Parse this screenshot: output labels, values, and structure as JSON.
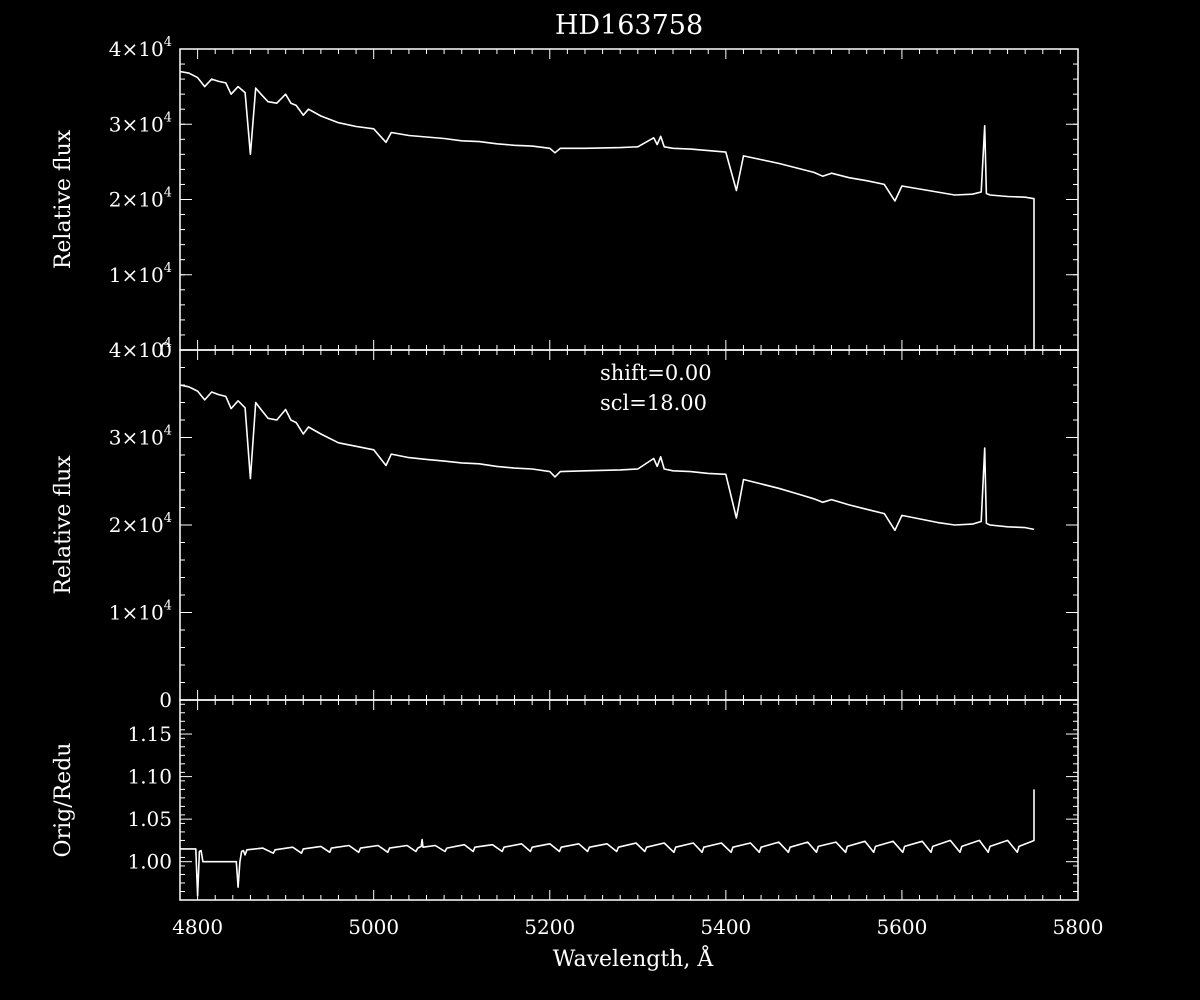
{
  "chart_data": {
    "title": "HD163758",
    "xlabel": "Wavelength, Å",
    "xlim": [
      4780,
      5800
    ],
    "xticks": [
      4800,
      5000,
      5200,
      5400,
      5600,
      5800
    ],
    "xtick_labels": [
      "4800",
      "5000",
      "5200",
      "5400",
      "5600",
      "5800"
    ],
    "panels": [
      {
        "type": "line",
        "ylabel": "Relative flux",
        "ylim": [
          0,
          40000
        ],
        "yticks": [
          0,
          10000,
          20000,
          30000,
          40000
        ],
        "ytick_labels": [
          {
            "mant": "0",
            "exp": ""
          },
          {
            "mant": "1×10",
            "exp": "4"
          },
          {
            "mant": "2×10",
            "exp": "4"
          },
          {
            "mant": "3×10",
            "exp": "4"
          },
          {
            "mant": "4×10",
            "exp": "4"
          }
        ],
        "series": {
          "x": [
            4780,
            4790,
            4800,
            4808,
            4816,
            4824,
            4832,
            4838,
            4846,
            4854,
            4860,
            4866,
            4872,
            4880,
            4890,
            4900,
            4906,
            4912,
            4920,
            4926,
            4940,
            4960,
            4980,
            5000,
            5014,
            5020,
            5040,
            5060,
            5080,
            5100,
            5120,
            5140,
            5160,
            5180,
            5200,
            5206,
            5212,
            5240,
            5280,
            5300,
            5318,
            5322,
            5326,
            5330,
            5340,
            5360,
            5380,
            5400,
            5412,
            5420,
            5440,
            5460,
            5480,
            5500,
            5510,
            5520,
            5540,
            5560,
            5580,
            5592,
            5600,
            5620,
            5640,
            5660,
            5680,
            5690,
            5694,
            5696,
            5700,
            5720,
            5740,
            5750,
            5750
          ],
          "y": [
            37000,
            36800,
            36200,
            35000,
            36000,
            35700,
            35500,
            34000,
            35000,
            34200,
            26000,
            34800,
            34000,
            33000,
            32800,
            34000,
            32800,
            32500,
            31200,
            32000,
            31100,
            30200,
            29700,
            29400,
            27600,
            28900,
            28500,
            28300,
            28100,
            27800,
            27700,
            27400,
            27200,
            27100,
            26800,
            26200,
            26800,
            26800,
            26900,
            27000,
            28200,
            27300,
            28400,
            27000,
            26800,
            26700,
            26500,
            26300,
            21200,
            25800,
            25300,
            24800,
            24200,
            23600,
            23100,
            23500,
            22900,
            22500,
            22000,
            19800,
            21800,
            21400,
            21000,
            20600,
            20700,
            21000,
            29800,
            20800,
            20600,
            20400,
            20300,
            20100,
            0
          ]
        }
      },
      {
        "type": "line",
        "ylabel": "Relative flux",
        "ylim": [
          0,
          40000
        ],
        "yticks": [
          0,
          10000,
          20000,
          30000,
          40000
        ],
        "ytick_labels": [
          {
            "mant": "0",
            "exp": ""
          },
          {
            "mant": "1×10",
            "exp": "4"
          },
          {
            "mant": "2×10",
            "exp": "4"
          },
          {
            "mant": "3×10",
            "exp": "4"
          },
          {
            "mant": "4×10",
            "exp": "4"
          }
        ],
        "annotations": [
          "shift=0.00",
          "scl=18.00"
        ],
        "series": {
          "x": [
            4780,
            4790,
            4800,
            4808,
            4816,
            4824,
            4832,
            4838,
            4846,
            4854,
            4860,
            4866,
            4872,
            4880,
            4890,
            4900,
            4906,
            4912,
            4920,
            4926,
            4940,
            4960,
            4980,
            5000,
            5014,
            5020,
            5040,
            5060,
            5080,
            5100,
            5120,
            5140,
            5160,
            5180,
            5200,
            5206,
            5212,
            5240,
            5280,
            5300,
            5318,
            5322,
            5326,
            5330,
            5340,
            5360,
            5380,
            5400,
            5412,
            5420,
            5440,
            5460,
            5480,
            5500,
            5510,
            5520,
            5540,
            5560,
            5580,
            5592,
            5600,
            5620,
            5640,
            5660,
            5680,
            5690,
            5694,
            5696,
            5700,
            5720,
            5740,
            5750
          ],
          "y": [
            36000,
            35800,
            35300,
            34300,
            35200,
            34900,
            34700,
            33300,
            34200,
            33400,
            25300,
            34000,
            33200,
            32200,
            32000,
            33200,
            32000,
            31700,
            30400,
            31200,
            30400,
            29400,
            29000,
            28600,
            26800,
            28100,
            27700,
            27500,
            27300,
            27100,
            27000,
            26700,
            26500,
            26400,
            26100,
            25500,
            26100,
            26200,
            26300,
            26400,
            27600,
            26700,
            27800,
            26400,
            26200,
            26100,
            25900,
            25800,
            20800,
            25200,
            24700,
            24200,
            23600,
            23000,
            22600,
            22900,
            22300,
            21800,
            21300,
            19400,
            21100,
            20700,
            20300,
            20000,
            20100,
            20400,
            28800,
            20200,
            20000,
            19800,
            19700,
            19500
          ]
        }
      },
      {
        "type": "line",
        "ylabel": "Orig/Redu",
        "ylim": [
          0.955,
          1.19
        ],
        "yticks": [
          1.0,
          1.05,
          1.1,
          1.15
        ],
        "ytick_labels": [
          {
            "mant": "1.00",
            "exp": ""
          },
          {
            "mant": "1.05",
            "exp": ""
          },
          {
            "mant": "1.10",
            "exp": ""
          },
          {
            "mant": "1.15",
            "exp": ""
          }
        ],
        "series": {
          "x": [
            4780,
            4798,
            4800,
            4802,
            4804,
            4806,
            4820,
            4830,
            4844,
            4846,
            4848,
            4850,
            4852,
            4854,
            4856,
            4874,
            4886,
            4888,
            4908,
            4918,
            4920,
            4940,
            4950,
            4952,
            4972,
            4983,
            4985,
            5005,
            5016,
            5018,
            5038,
            5048,
            5050,
            5054,
            5055,
            5056,
            5070,
            5081,
            5083,
            5103,
            5113,
            5115,
            5135,
            5146,
            5148,
            5168,
            5178,
            5180,
            5200,
            5211,
            5213,
            5233,
            5243,
            5245,
            5265,
            5276,
            5278,
            5298,
            5308,
            5310,
            5330,
            5341,
            5343,
            5363,
            5373,
            5375,
            5395,
            5406,
            5408,
            5428,
            5438,
            5440,
            5460,
            5471,
            5473,
            5493,
            5503,
            5505,
            5525,
            5536,
            5538,
            5558,
            5568,
            5570,
            5590,
            5601,
            5603,
            5623,
            5633,
            5635,
            5655,
            5666,
            5668,
            5688,
            5698,
            5700,
            5720,
            5731,
            5733,
            5748,
            5750,
            5750
          ],
          "y": [
            1.015,
            1.015,
            0.96,
            1.012,
            1.013,
            1.0,
            1.0,
            1.0,
            1.0,
            0.97,
            1.0,
            1.012,
            1.013,
            1.008,
            1.014,
            1.016,
            1.01,
            1.014,
            1.017,
            1.01,
            1.015,
            1.018,
            1.011,
            1.016,
            1.019,
            1.011,
            1.016,
            1.019,
            1.011,
            1.016,
            1.019,
            1.012,
            1.016,
            1.018,
            1.026,
            1.017,
            1.019,
            1.012,
            1.016,
            1.02,
            1.012,
            1.017,
            1.02,
            1.012,
            1.017,
            1.021,
            1.012,
            1.017,
            1.021,
            1.012,
            1.017,
            1.021,
            1.012,
            1.017,
            1.021,
            1.012,
            1.017,
            1.022,
            1.012,
            1.017,
            1.022,
            1.011,
            1.017,
            1.022,
            1.011,
            1.017,
            1.022,
            1.011,
            1.017,
            1.022,
            1.011,
            1.017,
            1.023,
            1.011,
            1.017,
            1.023,
            1.011,
            1.018,
            1.023,
            1.011,
            1.018,
            1.024,
            1.011,
            1.018,
            1.024,
            1.011,
            1.018,
            1.024,
            1.011,
            1.018,
            1.025,
            1.011,
            1.018,
            1.025,
            1.011,
            1.018,
            1.025,
            1.011,
            1.018,
            1.024,
            1.025,
            1.085
          ]
        }
      }
    ]
  }
}
